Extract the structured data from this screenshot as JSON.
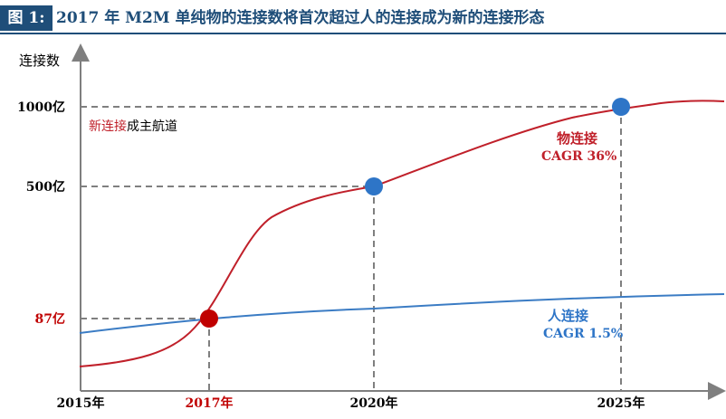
{
  "header": {
    "figure_label": "图 1:",
    "title": "2017 年 M2M 单纯物的连接数将首次超过人的连接成为新的连接形态"
  },
  "colors": {
    "accent": "#1f4e79",
    "things_line": "#c0202a",
    "people_line": "#3b7cc4",
    "dot_blue": "#2e75c7",
    "dot_red": "#c00000",
    "guide": "#7f7f7f"
  },
  "chart_data": {
    "type": "line",
    "ylabel": "连接数",
    "x_ticks": [
      {
        "year": 2015,
        "label": "2015年",
        "highlight": false
      },
      {
        "year": 2017,
        "label": "2017年",
        "highlight": true
      },
      {
        "year": 2020,
        "label": "2020年",
        "highlight": false
      },
      {
        "year": 2025,
        "label": "2025年",
        "highlight": false
      }
    ],
    "y_ticks": [
      {
        "value": 87,
        "label": "87亿",
        "highlight": true
      },
      {
        "value": 500,
        "label": "500亿",
        "highlight": false
      },
      {
        "value": 1000,
        "label": "1000亿",
        "highlight": false
      }
    ],
    "series": [
      {
        "key": "things",
        "name": "物连接",
        "cagr": "CAGR 36%"
      },
      {
        "key": "people",
        "name": "人连接",
        "cagr": "CAGR 1.5%"
      }
    ],
    "markers": [
      {
        "year": 2017,
        "value": 87,
        "color": "dot_red"
      },
      {
        "year": 2020,
        "value": 500,
        "color": "dot_blue"
      },
      {
        "year": 2025,
        "value": 1000,
        "color": "dot_blue"
      }
    ],
    "annotation": {
      "highlight": "新连接",
      "rest": "成主航道"
    }
  }
}
